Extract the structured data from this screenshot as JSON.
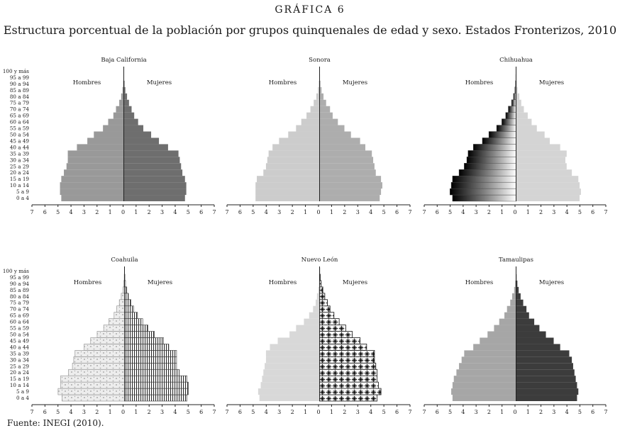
{
  "figure": {
    "label": "GRÁFICA 6",
    "title": "Estructura porcentual de la población por grupos quinquenales de edad y sexo. Estados Fronterizos, 2010",
    "source": "Fuente: INEGI (2010)."
  },
  "chart_data": [
    {
      "type": "bar",
      "title": "Baja California",
      "left_label": "Hombres",
      "right_label": "Mujeres",
      "categories": [
        "0 a 4",
        "5 a 9",
        "10 a 14",
        "15 a 19",
        "20 a 24",
        "25 a 29",
        "30 a 34",
        "35 a 39",
        "40 a 44",
        "45 a 49",
        "50 a 54",
        "55 a 59",
        "60 a 64",
        "65 a 69",
        "70 a 74",
        "75 a 79",
        "80 a 84",
        "85 a 89",
        "90 a 94",
        "95 a 99",
        "100 y más"
      ],
      "series": [
        {
          "values": [
            4.8,
            4.9,
            4.9,
            4.8,
            4.6,
            4.4,
            4.3,
            4.3,
            3.6,
            2.8,
            2.3,
            1.6,
            1.2,
            0.8,
            0.6,
            0.35,
            0.2,
            0.1,
            0.05,
            0.02,
            0.01
          ],
          "color": "#999999"
        },
        {
          "values": [
            4.7,
            4.8,
            4.8,
            4.7,
            4.5,
            4.4,
            4.3,
            4.2,
            3.4,
            2.7,
            2.1,
            1.5,
            1.1,
            0.8,
            0.6,
            0.4,
            0.25,
            0.12,
            0.06,
            0.02,
            0.01
          ],
          "color": "#6e6e6e"
        }
      ],
      "xticks": [
        "7",
        "6",
        "5",
        "4",
        "3",
        "2",
        "1",
        "0",
        "1",
        "2",
        "3",
        "4",
        "5",
        "6",
        "7"
      ],
      "xlim": [
        -7,
        7
      ]
    },
    {
      "type": "bar",
      "title": "Sonora",
      "left_label": "Hombres",
      "right_label": "Mujeres",
      "categories": [
        "0 a 4",
        "5 a 9",
        "10 a 14",
        "15 a 19",
        "20 a 24",
        "25 a 29",
        "30 a 34",
        "35 a 39",
        "40 a 44",
        "45 a 49",
        "50 a 54",
        "55 a 59",
        "60 a 64",
        "65 a 69",
        "70 a 74",
        "75 a 79",
        "80 a 84",
        "85 a 89",
        "90 a 94",
        "95 a 99",
        "100 y más"
      ],
      "series": [
        {
          "values": [
            4.9,
            4.9,
            4.9,
            4.8,
            4.3,
            4.1,
            4.0,
            3.9,
            3.6,
            3.1,
            2.4,
            1.8,
            1.4,
            1.0,
            0.7,
            0.45,
            0.25,
            0.12,
            0.06,
            0.02,
            0.01
          ],
          "color": "#cccccc"
        },
        {
          "values": [
            4.6,
            4.7,
            4.8,
            4.7,
            4.3,
            4.2,
            4.1,
            4.0,
            3.5,
            3.1,
            2.4,
            1.9,
            1.4,
            1.0,
            0.8,
            0.5,
            0.3,
            0.15,
            0.07,
            0.03,
            0.01
          ],
          "color": "#adadad"
        }
      ],
      "xticks": [
        "7",
        "6",
        "5",
        "4",
        "3",
        "2",
        "1",
        "0",
        "1",
        "2",
        "3",
        "4",
        "5",
        "6",
        "7"
      ],
      "xlim": [
        -7,
        7
      ]
    },
    {
      "type": "bar",
      "title": "Chihuahua",
      "left_label": "Hombres",
      "right_label": "Mujeres",
      "categories": [
        "0 a 4",
        "5 a 9",
        "10 a 14",
        "15 a 19",
        "20 a 24",
        "25 a 29",
        "30 a 34",
        "35 a 39",
        "40 a 44",
        "45 a 49",
        "50 a 54",
        "55 a 59",
        "60 a 64",
        "65 a 69",
        "70 a 74",
        "75 a 79",
        "80 a 84",
        "85 a 89",
        "90 a 94",
        "95 a 99",
        "100 y más"
      ],
      "series": [
        {
          "values": [
            4.9,
            5.1,
            5.0,
            4.9,
            4.4,
            4.0,
            3.8,
            3.7,
            3.3,
            2.6,
            2.1,
            1.5,
            1.1,
            0.8,
            0.6,
            0.35,
            0.2,
            0.1,
            0.05,
            0.02,
            0.01
          ],
          "color": "#111111"
        },
        {
          "values": [
            4.9,
            5.0,
            4.9,
            4.8,
            4.3,
            3.9,
            3.8,
            3.9,
            3.4,
            2.6,
            2.2,
            1.6,
            1.2,
            0.9,
            0.6,
            0.4,
            0.25,
            0.12,
            0.06,
            0.02,
            0.01
          ],
          "color": "#d4d4d4"
        }
      ],
      "xticks": [
        "7",
        "6",
        "5",
        "4",
        "3",
        "2",
        "1",
        "0",
        "1",
        "2",
        "3",
        "4",
        "5",
        "6",
        "7"
      ],
      "xlim": [
        -7,
        7
      ]
    },
    {
      "type": "bar",
      "title": "Coahuila",
      "left_label": "Hombres",
      "right_label": "Mujeres",
      "categories": [
        "0 a 4",
        "5 a 9",
        "10 a 14",
        "15 a 19",
        "20 a 24",
        "25 a 29",
        "30 a 34",
        "35 a 39",
        "40 a 44",
        "45 a 49",
        "50 a 54",
        "55 a 59",
        "60 a 64",
        "65 a 69",
        "70 a 74",
        "75 a 79",
        "80 a 84",
        "85 a 89",
        "90 a 94",
        "95 a 99",
        "100 y más"
      ],
      "series": [
        {
          "values": [
            4.8,
            5.1,
            4.9,
            4.9,
            4.3,
            4.0,
            3.9,
            3.8,
            3.1,
            2.6,
            2.1,
            1.6,
            1.2,
            0.8,
            0.6,
            0.4,
            0.25,
            0.12,
            0.06,
            0.02,
            0.01
          ],
          "color": "#e0e0e0"
        },
        {
          "values": [
            4.8,
            4.9,
            4.9,
            4.8,
            4.2,
            4.0,
            4.0,
            4.0,
            3.4,
            3.0,
            2.3,
            1.8,
            1.4,
            1.0,
            0.7,
            0.5,
            0.3,
            0.18,
            0.08,
            0.03,
            0.01
          ],
          "color": "#ffffff"
        }
      ],
      "xticks": [
        "7",
        "6",
        "5",
        "4",
        "3",
        "2",
        "1",
        "0",
        "1",
        "2",
        "3",
        "4",
        "5",
        "6",
        "7"
      ],
      "xlim": [
        -7,
        7
      ]
    },
    {
      "type": "bar",
      "title": "Nuevo León",
      "left_label": "Hombres",
      "right_label": "Mujeres",
      "categories": [
        "0 a 4",
        "5 a 9",
        "10 a 14",
        "15 a 19",
        "20 a 24",
        "25 a 29",
        "30 a 34",
        "35 a 39",
        "40 a 44",
        "45 a 49",
        "50 a 54",
        "55 a 59",
        "60 a 64",
        "65 a 69",
        "70 a 74",
        "75 a 79",
        "80 a 84",
        "85 a 89",
        "90 a 94",
        "95 a 99",
        "100 y más"
      ],
      "series": [
        {
          "values": [
            4.6,
            4.7,
            4.5,
            4.4,
            4.3,
            4.2,
            4.1,
            4.1,
            3.8,
            3.2,
            2.3,
            1.8,
            1.2,
            0.8,
            0.5,
            0.3,
            0.2,
            0.1,
            0.05,
            0.02,
            0.01
          ],
          "color": "#d8d8d8"
        },
        {
          "values": [
            4.4,
            4.7,
            4.5,
            4.4,
            4.4,
            4.3,
            4.2,
            4.2,
            3.6,
            3.1,
            2.5,
            2.0,
            1.5,
            1.1,
            0.8,
            0.6,
            0.4,
            0.25,
            0.12,
            0.05,
            0.01
          ],
          "color": "#ffffff"
        }
      ],
      "xticks": [
        "7",
        "6",
        "5",
        "4",
        "3",
        "2",
        "1",
        "0",
        "1",
        "2",
        "3",
        "4",
        "5",
        "6",
        "7"
      ],
      "xlim": [
        -7,
        7
      ]
    },
    {
      "type": "bar",
      "title": "Tamaulipas",
      "left_label": "Hombres",
      "right_label": "Mujeres",
      "categories": [
        "0 a 4",
        "5 a 9",
        "10 a 14",
        "15 a 19",
        "20 a 24",
        "25 a 29",
        "30 a 34",
        "35 a 39",
        "40 a 44",
        "45 a 49",
        "50 a 54",
        "55 a 59",
        "60 a 64",
        "65 a 69",
        "70 a 74",
        "75 a 79",
        "80 a 84",
        "85 a 89",
        "90 a 94",
        "95 a 99",
        "100 y más"
      ],
      "series": [
        {
          "values": [
            4.9,
            5.0,
            4.9,
            4.8,
            4.6,
            4.4,
            4.2,
            4.0,
            3.3,
            2.8,
            2.2,
            1.7,
            1.3,
            0.9,
            0.7,
            0.45,
            0.3,
            0.15,
            0.07,
            0.03,
            0.01
          ],
          "color": "#a6a6a6"
        },
        {
          "values": [
            4.7,
            4.8,
            4.7,
            4.6,
            4.5,
            4.4,
            4.3,
            4.1,
            3.4,
            2.9,
            2.3,
            1.8,
            1.4,
            1.0,
            0.8,
            0.55,
            0.35,
            0.2,
            0.1,
            0.04,
            0.01
          ],
          "color": "#3c3c3c"
        }
      ],
      "xticks": [
        "7",
        "6",
        "5",
        "4",
        "3",
        "2",
        "1",
        "0",
        "1",
        "2",
        "3",
        "4",
        "5",
        "6",
        "7"
      ],
      "xlim": [
        -7,
        7
      ]
    }
  ]
}
